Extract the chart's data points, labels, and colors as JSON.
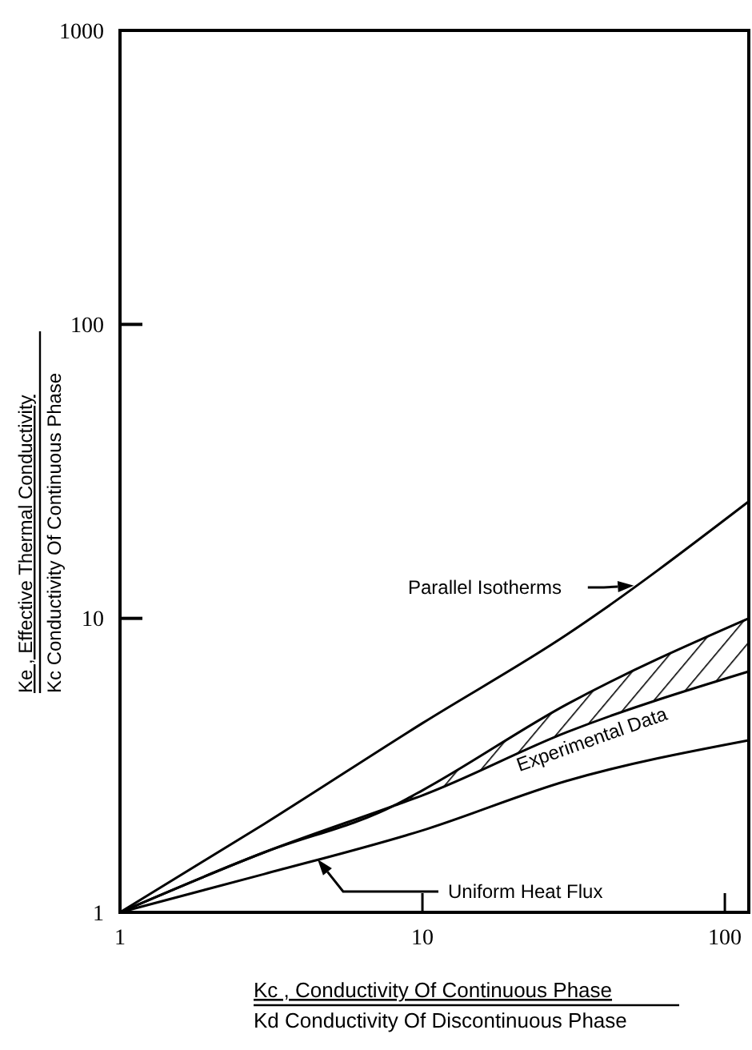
{
  "chart_data": {
    "type": "line",
    "xlabel": "Kc , Conductivity Of Continuous Phase\nKd Conductivity Of Discontinuous Phase",
    "ylabel": "Ke , Effective Thermal Conductivity\nKc Conductivity Of Continuous Phase",
    "log": "xy",
    "xlim": [
      1,
      120
    ],
    "xticks": [
      1,
      10,
      100
    ],
    "ylim": [
      1,
      1000
    ],
    "yticks": [
      1,
      10,
      100,
      1000
    ],
    "grid": false,
    "series": [
      {
        "name": "Parallel Isotherms",
        "color": "#000000",
        "x": [
          1,
          3,
          10,
          30,
          120
        ],
        "values": [
          1,
          2,
          4.4,
          8.8,
          25
        ]
      },
      {
        "name": "Experimental Data",
        "color": "#000000",
        "x": [
          1,
          3,
          8,
          10,
          30,
          120
        ],
        "values": [
          1,
          1.6,
          2.3,
          2.6,
          5.1,
          10
        ]
      },
      {
        "color": "#000000",
        "x": [
          1,
          3,
          8,
          10,
          30,
          120
        ],
        "values": [
          1,
          1.6,
          2.3,
          2.5,
          4.1,
          6.6
        ]
      },
      {
        "name": "Uniform Heat Flux",
        "color": "#000000",
        "x": [
          1,
          3,
          10,
          30,
          120
        ],
        "values": [
          1,
          1.35,
          1.9,
          2.8,
          3.85
        ]
      }
    ]
  }
}
